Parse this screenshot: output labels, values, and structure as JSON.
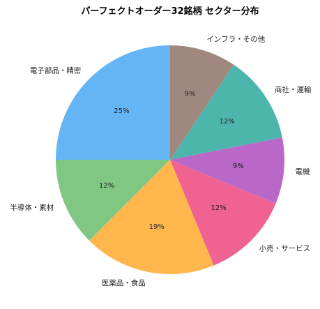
{
  "chart_data": {
    "type": "pie",
    "title": "パーフェクトオーダー32銘柄 セクター分布",
    "start_angle_deg": 90,
    "direction": "counterclockwise",
    "slices": [
      {
        "label": "電子部品・精密",
        "value": 8,
        "pct_label": "25%",
        "color": "#64b5f6"
      },
      {
        "label": "半導体・素材",
        "value": 4,
        "pct_label": "12%",
        "color": "#81c784"
      },
      {
        "label": "医薬品・食品",
        "value": 6,
        "pct_label": "19%",
        "color": "#ffb74d"
      },
      {
        "label": "小売・サービス",
        "value": 4,
        "pct_label": "12%",
        "color": "#f06292"
      },
      {
        "label": "電機",
        "value": 3,
        "pct_label": "9%",
        "color": "#ba68c8"
      },
      {
        "label": "商社・運輸",
        "value": 4,
        "pct_label": "12%",
        "color": "#4db6ac"
      },
      {
        "label": "インフラ・その他",
        "value": 3,
        "pct_label": "9%",
        "color": "#a1887f"
      }
    ]
  }
}
